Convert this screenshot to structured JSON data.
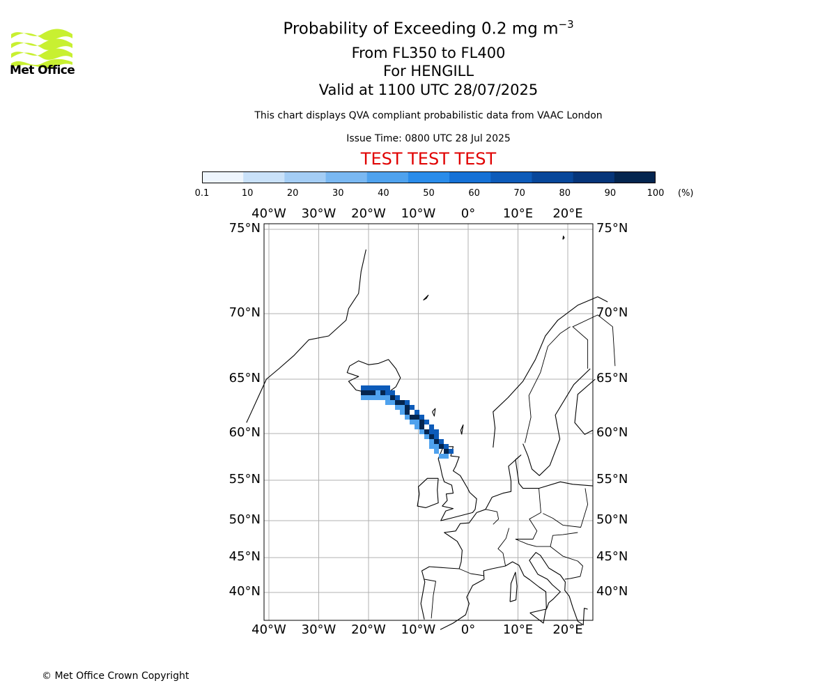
{
  "header": {
    "title": "Probability of Exceeding 0.2 mg m",
    "title_exp": "−3",
    "subtitle_levels": "From FL350 to FL400",
    "subtitle_volcano": "For HENGILL",
    "subtitle_valid": "Valid at 1100 UTC 28/07/2025",
    "note": "This chart displays QVA compliant probabilistic data from VAAC London",
    "issue_time": "Issue Time: 0800 UTC 28 Jul 2025",
    "test_banner": "TEST TEST TEST"
  },
  "logo": {
    "text": "Met Office",
    "color": "#c8f031",
    "icon": "met-office-wave-logo"
  },
  "colorbar": {
    "ticks": [
      "0.1",
      "10",
      "20",
      "30",
      "40",
      "50",
      "60",
      "70",
      "80",
      "90",
      "100"
    ],
    "unit": "(%)",
    "colors": [
      "#eef5fd",
      "#c9e1f9",
      "#a4cdf5",
      "#7ab8f2",
      "#4fa2ee",
      "#2a8cea",
      "#1571d6",
      "#0d5bb9",
      "#08479a",
      "#063579",
      "#04254f"
    ]
  },
  "map": {
    "lon_labels": [
      "40°W",
      "30°W",
      "20°W",
      "10°W",
      "0°",
      "10°E",
      "20°E"
    ],
    "lat_labels": [
      "75°N",
      "70°N",
      "65°N",
      "60°N",
      "55°N",
      "50°N",
      "45°N",
      "40°N"
    ],
    "grid": true,
    "ash_plume": {
      "source": "HENGILL",
      "max_probability_percent": 100,
      "path_lonlat": [
        [
          -21.5,
          64.1
        ],
        [
          -18,
          64.1
        ],
        [
          -14,
          63.0
        ],
        [
          -10,
          61.1
        ],
        [
          -6.5,
          59.0
        ],
        [
          -4,
          57.7
        ]
      ]
    }
  },
  "footer": {
    "copyright": "© Met Office Crown Copyright"
  }
}
